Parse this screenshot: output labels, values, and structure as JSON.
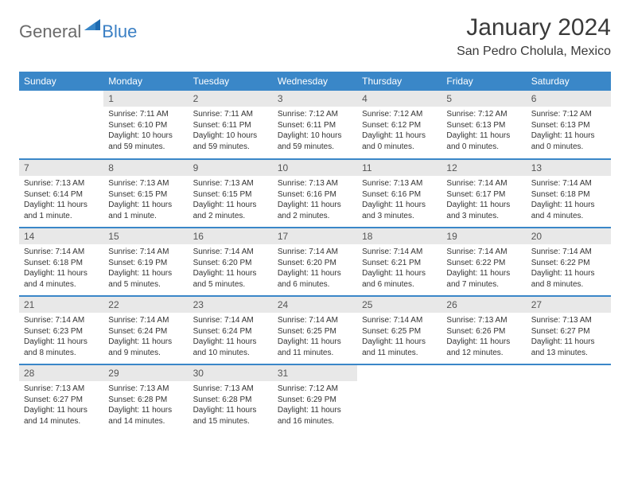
{
  "logo": {
    "text_general": "General",
    "text_blue": "Blue",
    "icon_color": "#3a87c8"
  },
  "header": {
    "month_title": "January 2024",
    "location": "San Pedro Cholula, Mexico"
  },
  "styling": {
    "header_bg": "#3a87c8",
    "header_text": "#ffffff",
    "daynum_bg": "#e8e8e8",
    "border_color": "#3a87c8",
    "body_text": "#333333",
    "title_fontsize": 30,
    "location_fontsize": 16,
    "header_fontsize": 12,
    "daynum_fontsize": 12,
    "body_fontsize": 10
  },
  "day_headers": [
    "Sunday",
    "Monday",
    "Tuesday",
    "Wednesday",
    "Thursday",
    "Friday",
    "Saturday"
  ],
  "weeks": [
    [
      null,
      {
        "num": "1",
        "sunrise": "Sunrise: 7:11 AM",
        "sunset": "Sunset: 6:10 PM",
        "daylight1": "Daylight: 10 hours",
        "daylight2": "and 59 minutes."
      },
      {
        "num": "2",
        "sunrise": "Sunrise: 7:11 AM",
        "sunset": "Sunset: 6:11 PM",
        "daylight1": "Daylight: 10 hours",
        "daylight2": "and 59 minutes."
      },
      {
        "num": "3",
        "sunrise": "Sunrise: 7:12 AM",
        "sunset": "Sunset: 6:11 PM",
        "daylight1": "Daylight: 10 hours",
        "daylight2": "and 59 minutes."
      },
      {
        "num": "4",
        "sunrise": "Sunrise: 7:12 AM",
        "sunset": "Sunset: 6:12 PM",
        "daylight1": "Daylight: 11 hours",
        "daylight2": "and 0 minutes."
      },
      {
        "num": "5",
        "sunrise": "Sunrise: 7:12 AM",
        "sunset": "Sunset: 6:13 PM",
        "daylight1": "Daylight: 11 hours",
        "daylight2": "and 0 minutes."
      },
      {
        "num": "6",
        "sunrise": "Sunrise: 7:12 AM",
        "sunset": "Sunset: 6:13 PM",
        "daylight1": "Daylight: 11 hours",
        "daylight2": "and 0 minutes."
      }
    ],
    [
      {
        "num": "7",
        "sunrise": "Sunrise: 7:13 AM",
        "sunset": "Sunset: 6:14 PM",
        "daylight1": "Daylight: 11 hours",
        "daylight2": "and 1 minute."
      },
      {
        "num": "8",
        "sunrise": "Sunrise: 7:13 AM",
        "sunset": "Sunset: 6:15 PM",
        "daylight1": "Daylight: 11 hours",
        "daylight2": "and 1 minute."
      },
      {
        "num": "9",
        "sunrise": "Sunrise: 7:13 AM",
        "sunset": "Sunset: 6:15 PM",
        "daylight1": "Daylight: 11 hours",
        "daylight2": "and 2 minutes."
      },
      {
        "num": "10",
        "sunrise": "Sunrise: 7:13 AM",
        "sunset": "Sunset: 6:16 PM",
        "daylight1": "Daylight: 11 hours",
        "daylight2": "and 2 minutes."
      },
      {
        "num": "11",
        "sunrise": "Sunrise: 7:13 AM",
        "sunset": "Sunset: 6:16 PM",
        "daylight1": "Daylight: 11 hours",
        "daylight2": "and 3 minutes."
      },
      {
        "num": "12",
        "sunrise": "Sunrise: 7:14 AM",
        "sunset": "Sunset: 6:17 PM",
        "daylight1": "Daylight: 11 hours",
        "daylight2": "and 3 minutes."
      },
      {
        "num": "13",
        "sunrise": "Sunrise: 7:14 AM",
        "sunset": "Sunset: 6:18 PM",
        "daylight1": "Daylight: 11 hours",
        "daylight2": "and 4 minutes."
      }
    ],
    [
      {
        "num": "14",
        "sunrise": "Sunrise: 7:14 AM",
        "sunset": "Sunset: 6:18 PM",
        "daylight1": "Daylight: 11 hours",
        "daylight2": "and 4 minutes."
      },
      {
        "num": "15",
        "sunrise": "Sunrise: 7:14 AM",
        "sunset": "Sunset: 6:19 PM",
        "daylight1": "Daylight: 11 hours",
        "daylight2": "and 5 minutes."
      },
      {
        "num": "16",
        "sunrise": "Sunrise: 7:14 AM",
        "sunset": "Sunset: 6:20 PM",
        "daylight1": "Daylight: 11 hours",
        "daylight2": "and 5 minutes."
      },
      {
        "num": "17",
        "sunrise": "Sunrise: 7:14 AM",
        "sunset": "Sunset: 6:20 PM",
        "daylight1": "Daylight: 11 hours",
        "daylight2": "and 6 minutes."
      },
      {
        "num": "18",
        "sunrise": "Sunrise: 7:14 AM",
        "sunset": "Sunset: 6:21 PM",
        "daylight1": "Daylight: 11 hours",
        "daylight2": "and 6 minutes."
      },
      {
        "num": "19",
        "sunrise": "Sunrise: 7:14 AM",
        "sunset": "Sunset: 6:22 PM",
        "daylight1": "Daylight: 11 hours",
        "daylight2": "and 7 minutes."
      },
      {
        "num": "20",
        "sunrise": "Sunrise: 7:14 AM",
        "sunset": "Sunset: 6:22 PM",
        "daylight1": "Daylight: 11 hours",
        "daylight2": "and 8 minutes."
      }
    ],
    [
      {
        "num": "21",
        "sunrise": "Sunrise: 7:14 AM",
        "sunset": "Sunset: 6:23 PM",
        "daylight1": "Daylight: 11 hours",
        "daylight2": "and 8 minutes."
      },
      {
        "num": "22",
        "sunrise": "Sunrise: 7:14 AM",
        "sunset": "Sunset: 6:24 PM",
        "daylight1": "Daylight: 11 hours",
        "daylight2": "and 9 minutes."
      },
      {
        "num": "23",
        "sunrise": "Sunrise: 7:14 AM",
        "sunset": "Sunset: 6:24 PM",
        "daylight1": "Daylight: 11 hours",
        "daylight2": "and 10 minutes."
      },
      {
        "num": "24",
        "sunrise": "Sunrise: 7:14 AM",
        "sunset": "Sunset: 6:25 PM",
        "daylight1": "Daylight: 11 hours",
        "daylight2": "and 11 minutes."
      },
      {
        "num": "25",
        "sunrise": "Sunrise: 7:14 AM",
        "sunset": "Sunset: 6:25 PM",
        "daylight1": "Daylight: 11 hours",
        "daylight2": "and 11 minutes."
      },
      {
        "num": "26",
        "sunrise": "Sunrise: 7:13 AM",
        "sunset": "Sunset: 6:26 PM",
        "daylight1": "Daylight: 11 hours",
        "daylight2": "and 12 minutes."
      },
      {
        "num": "27",
        "sunrise": "Sunrise: 7:13 AM",
        "sunset": "Sunset: 6:27 PM",
        "daylight1": "Daylight: 11 hours",
        "daylight2": "and 13 minutes."
      }
    ],
    [
      {
        "num": "28",
        "sunrise": "Sunrise: 7:13 AM",
        "sunset": "Sunset: 6:27 PM",
        "daylight1": "Daylight: 11 hours",
        "daylight2": "and 14 minutes."
      },
      {
        "num": "29",
        "sunrise": "Sunrise: 7:13 AM",
        "sunset": "Sunset: 6:28 PM",
        "daylight1": "Daylight: 11 hours",
        "daylight2": "and 14 minutes."
      },
      {
        "num": "30",
        "sunrise": "Sunrise: 7:13 AM",
        "sunset": "Sunset: 6:28 PM",
        "daylight1": "Daylight: 11 hours",
        "daylight2": "and 15 minutes."
      },
      {
        "num": "31",
        "sunrise": "Sunrise: 7:12 AM",
        "sunset": "Sunset: 6:29 PM",
        "daylight1": "Daylight: 11 hours",
        "daylight2": "and 16 minutes."
      },
      null,
      null,
      null
    ]
  ]
}
